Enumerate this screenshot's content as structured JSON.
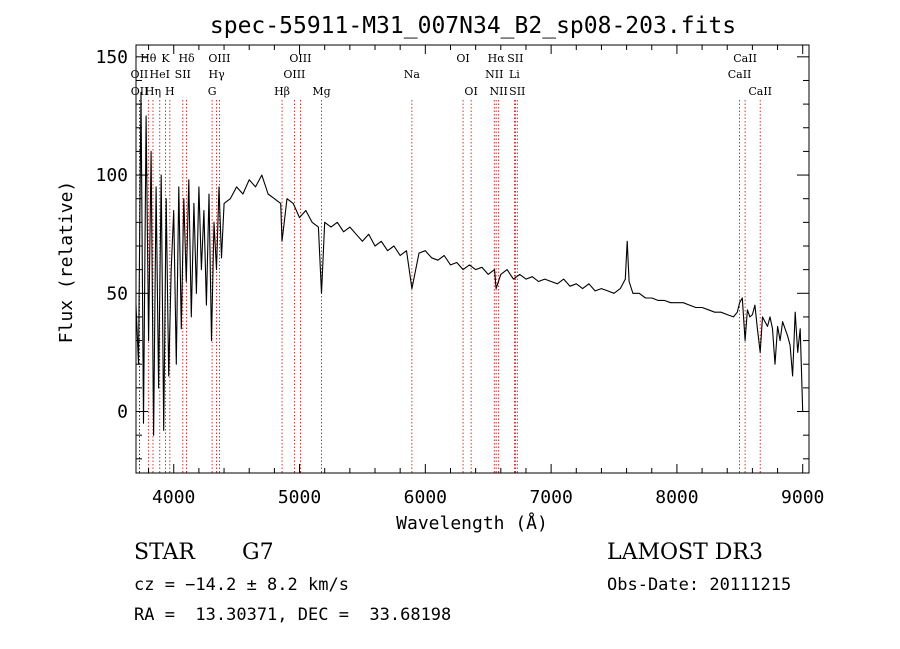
{
  "chart_data": {
    "type": "line",
    "title": "spec-55911-M31_007N34_B2_sp08-203.fits",
    "xlabel": "Wavelength (Å)",
    "ylabel": "Flux (relative)",
    "xlim": [
      3700,
      9050
    ],
    "ylim": [
      -26,
      155
    ],
    "x_ticks": [
      4000,
      5000,
      6000,
      7000,
      8000,
      9000
    ],
    "y_ticks": [
      0,
      50,
      100,
      150
    ],
    "x_tick_labels": [
      "4000",
      "5000",
      "6000",
      "7000",
      "8000",
      "9000"
    ],
    "y_tick_labels": [
      "0",
      "50",
      "100",
      "150"
    ],
    "series": [
      {
        "name": "flux",
        "x": [
          3700,
          3720,
          3740,
          3760,
          3780,
          3800,
          3820,
          3840,
          3860,
          3880,
          3900,
          3920,
          3940,
          3960,
          3980,
          4000,
          4020,
          4040,
          4060,
          4080,
          4100,
          4120,
          4140,
          4160,
          4180,
          4200,
          4220,
          4240,
          4260,
          4280,
          4300,
          4320,
          4340,
          4360,
          4380,
          4400,
          4450,
          4500,
          4550,
          4600,
          4650,
          4700,
          4750,
          4800,
          4850,
          4861,
          4900,
          4950,
          5000,
          5050,
          5100,
          5150,
          5175,
          5200,
          5250,
          5300,
          5350,
          5400,
          5450,
          5500,
          5550,
          5600,
          5650,
          5700,
          5750,
          5800,
          5850,
          5893,
          5950,
          6000,
          6050,
          6100,
          6150,
          6200,
          6250,
          6300,
          6350,
          6400,
          6450,
          6500,
          6550,
          6563,
          6600,
          6650,
          6700,
          6750,
          6800,
          6850,
          6900,
          6950,
          7000,
          7050,
          7100,
          7150,
          7200,
          7250,
          7300,
          7350,
          7400,
          7450,
          7500,
          7550,
          7590,
          7605,
          7620,
          7650,
          7700,
          7750,
          7800,
          7850,
          7900,
          7950,
          8000,
          8050,
          8100,
          8150,
          8200,
          8250,
          8300,
          8350,
          8400,
          8450,
          8480,
          8498,
          8520,
          8542,
          8560,
          8580,
          8600,
          8620,
          8640,
          8662,
          8680,
          8700,
          8720,
          8740,
          8760,
          8780,
          8800,
          8820,
          8840,
          8860,
          8880,
          8900,
          8920,
          8940,
          8960,
          8980,
          9000
        ],
        "values": [
          45,
          20,
          135,
          -5,
          125,
          30,
          110,
          -10,
          95,
          10,
          100,
          -8,
          90,
          15,
          60,
          85,
          20,
          95,
          35,
          90,
          55,
          98,
          40,
          88,
          50,
          95,
          60,
          85,
          45,
          92,
          30,
          80,
          60,
          95,
          65,
          88,
          90,
          95,
          92,
          98,
          95,
          100,
          92,
          90,
          88,
          72,
          90,
          88,
          82,
          85,
          80,
          78,
          50,
          80,
          78,
          80,
          76,
          78,
          75,
          72,
          75,
          70,
          72,
          68,
          70,
          66,
          68,
          52,
          67,
          68,
          65,
          64,
          66,
          62,
          63,
          60,
          62,
          60,
          61,
          58,
          60,
          52,
          58,
          60,
          56,
          58,
          56,
          57,
          55,
          56,
          55,
          54,
          56,
          53,
          54,
          52,
          54,
          51,
          52,
          51,
          50,
          52,
          56,
          72,
          55,
          50,
          50,
          48,
          48,
          47,
          47,
          46,
          46,
          46,
          45,
          44,
          44,
          43,
          42,
          42,
          41,
          40,
          42,
          46,
          48,
          30,
          43,
          40,
          41,
          45,
          35,
          25,
          40,
          38,
          36,
          40,
          35,
          20,
          36,
          30,
          38,
          35,
          32,
          28,
          15,
          42,
          25,
          35,
          0
        ]
      }
    ],
    "line_markers": [
      {
        "label": "OII",
        "wavelength": 3727,
        "row": 2
      },
      {
        "label": "OII",
        "wavelength": 3729,
        "row": 3
      },
      {
        "label": "Hθ",
        "wavelength": 3798,
        "row": 1
      },
      {
        "label": "Hη",
        "wavelength": 3835,
        "row": 3
      },
      {
        "label": "HeI",
        "wavelength": 3889,
        "row": 2
      },
      {
        "label": "K",
        "wavelength": 3934,
        "row": 1
      },
      {
        "label": "H",
        "wavelength": 3969,
        "row": 3
      },
      {
        "label": "SII",
        "wavelength": 4072,
        "row": 2
      },
      {
        "label": "Hδ",
        "wavelength": 4102,
        "row": 1
      },
      {
        "label": "OIII",
        "wavelength": 4363,
        "row": 1
      },
      {
        "label": "Hγ",
        "wavelength": 4341,
        "row": 2
      },
      {
        "label": "G",
        "wavelength": 4305,
        "row": 3
      },
      {
        "label": "Hβ",
        "wavelength": 4861,
        "row": 3
      },
      {
        "label": "OIII",
        "wavelength": 5007,
        "row": 1
      },
      {
        "label": "OIII",
        "wavelength": 4959,
        "row": 2
      },
      {
        "label": "Mg",
        "wavelength": 5175,
        "row": 3
      },
      {
        "label": "Na",
        "wavelength": 5893,
        "row": 2
      },
      {
        "label": "OI",
        "wavelength": 6300,
        "row": 1
      },
      {
        "label": "OI",
        "wavelength": 6364,
        "row": 3
      },
      {
        "label": "Hα",
        "wavelength": 6563,
        "row": 1
      },
      {
        "label": "NII",
        "wavelength": 6548,
        "row": 2
      },
      {
        "label": "NII",
        "wavelength": 6583,
        "row": 3
      },
      {
        "label": "SII",
        "wavelength": 6716,
        "row": 1
      },
      {
        "label": "Li",
        "wavelength": 6708,
        "row": 2
      },
      {
        "label": "SII",
        "wavelength": 6731,
        "row": 3
      },
      {
        "label": "CaII",
        "wavelength": 8542,
        "row": 1
      },
      {
        "label": "CaII",
        "wavelength": 8498,
        "row": 2
      },
      {
        "label": "CaII",
        "wavelength": 8662,
        "row": 3
      }
    ]
  },
  "info": {
    "class_label": "STAR",
    "subclass": "G7",
    "survey": "LAMOST DR3",
    "redshift": "cz = −14.2 ± 8.2 km/s",
    "obs_date": "Obs-Date: 20111215",
    "coords": "RA =  13.30371, DEC =  33.68198"
  },
  "colors": {
    "line": "#000000",
    "marker": "#cc0000",
    "axis": "#000000"
  }
}
